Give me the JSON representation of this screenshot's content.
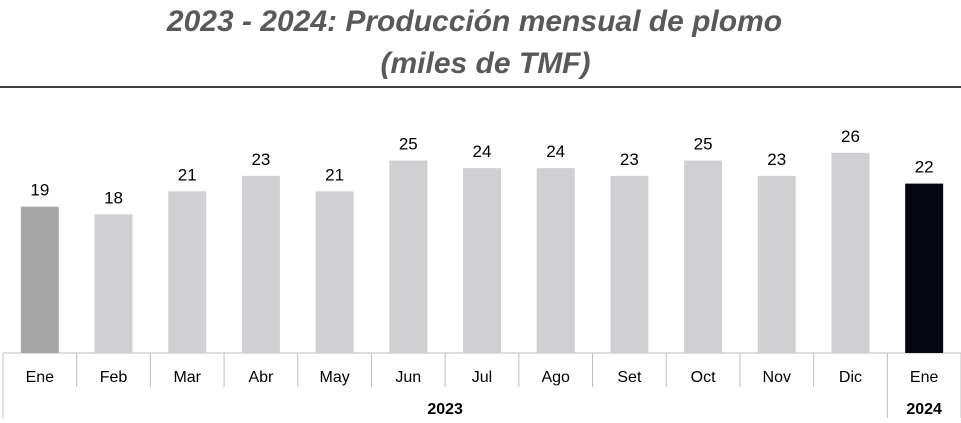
{
  "chart_data": {
    "type": "bar",
    "title": "2023 - 2024: Producción mensual de plomo",
    "subtitle": "(miles de TMF)",
    "categories": [
      "Ene",
      "Feb",
      "Mar",
      "Abr",
      "May",
      "Jun",
      "Jul",
      "Ago",
      "Set",
      "Oct",
      "Nov",
      "Dic",
      "Ene"
    ],
    "values": [
      19,
      18,
      21,
      23,
      21,
      25,
      24,
      24,
      23,
      25,
      23,
      26,
      22
    ],
    "value_labels": [
      "19",
      "18",
      "21",
      "23",
      "21",
      "25",
      "24",
      "24",
      "23",
      "25",
      "23",
      "26",
      "22"
    ],
    "years": [
      {
        "label": "2023",
        "from_index": 0,
        "to_index": 11
      },
      {
        "label": "2024",
        "from_index": 12,
        "to_index": 12
      }
    ],
    "ylim": [
      0,
      28
    ],
    "grid": false,
    "legend": "none",
    "colors": {
      "first_bar": "#a6a6a6",
      "bars_2023": "#d0d0d2",
      "bar_2024": "#05070d",
      "title": "#595959",
      "axis": "#bfbfbf"
    }
  }
}
